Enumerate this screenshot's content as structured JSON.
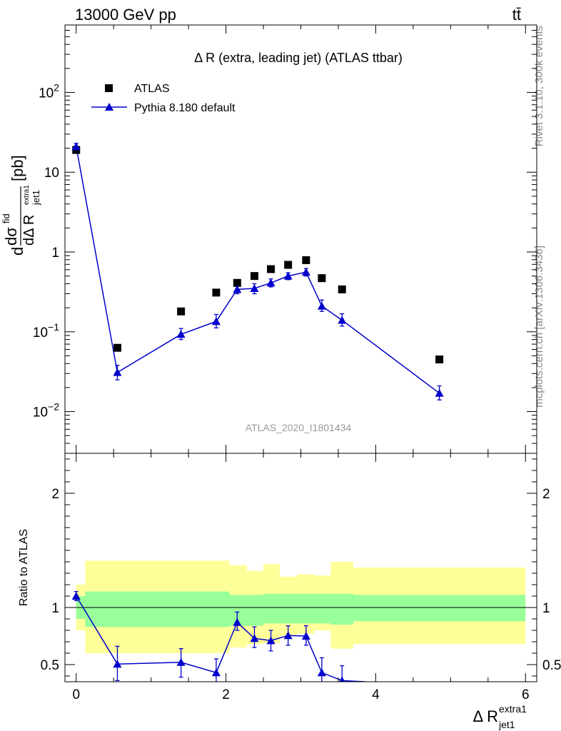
{
  "header": {
    "energy_label": "13000 GeV pp",
    "process_label": "tt̄"
  },
  "side_labels": {
    "rivet": "Rivet 3.1.10,  300k events",
    "mcplots": "mcplots.cern.ch [arXiv:1306.3436]"
  },
  "chart_data": [
    {
      "type": "scatter",
      "title": "Δ R (extra, leading jet) (ATLAS ttbar)",
      "watermark": "ATLAS_2020_I1801434",
      "ylabel_parts": {
        "d1": "d",
        "sig": "dσ",
        "fid": "fid",
        "den": "dΔ R",
        "sub": "jet1",
        "sup": "extra1",
        "unit": "[pb]"
      },
      "yscale": "log",
      "ylim": [
        0.003,
        700
      ],
      "xlim": [
        -0.15,
        6.15
      ],
      "y_ticks": [
        {
          "v": 0.01,
          "base": "10",
          "exp": "−2"
        },
        {
          "v": 0.1,
          "base": "10",
          "exp": "−1"
        },
        {
          "v": 1,
          "base": "1",
          "exp": ""
        },
        {
          "v": 10,
          "base": "10",
          "exp": ""
        },
        {
          "v": 100,
          "base": "10",
          "exp": "2"
        }
      ],
      "legend_position": "top-left",
      "series": [
        {
          "name": "ATLAS",
          "marker": "square",
          "color": "#000000",
          "x": [
            0.0,
            0.55,
            1.4,
            1.87,
            2.15,
            2.38,
            2.6,
            2.83,
            3.07,
            3.28,
            3.55,
            4.85
          ],
          "y": [
            19,
            0.063,
            0.18,
            0.31,
            0.41,
            0.5,
            0.61,
            0.69,
            0.79,
            0.47,
            0.34,
            0.045
          ]
        },
        {
          "name": "Pythia 8.180 default",
          "marker": "triangle",
          "color": "#0000cc",
          "x": [
            0.0,
            0.55,
            1.4,
            1.87,
            2.15,
            2.38,
            2.6,
            2.83,
            3.07,
            3.28,
            3.55,
            4.85
          ],
          "y": [
            21,
            0.031,
            0.093,
            0.135,
            0.34,
            0.35,
            0.41,
            0.5,
            0.56,
            0.21,
            0.14,
            0.017
          ],
          "err_lo": [
            19,
            0.025,
            0.08,
            0.112,
            0.3,
            0.3,
            0.365,
            0.45,
            0.5,
            0.18,
            0.118,
            0.014
          ],
          "err_hi": [
            23,
            0.038,
            0.11,
            0.165,
            0.39,
            0.4,
            0.46,
            0.55,
            0.62,
            0.25,
            0.168,
            0.021
          ]
        }
      ]
    },
    {
      "type": "line",
      "ylabel": "Ratio to ATLAS",
      "xlabel_parts": {
        "main": "Δ R",
        "sub": "jet1",
        "sup": "extra1"
      },
      "xlim": [
        -0.15,
        6.15
      ],
      "ylim": [
        0.35,
        2.35
      ],
      "x_ticks": [
        0,
        2,
        4,
        6
      ],
      "y_ticks": [
        0.5,
        1,
        2
      ],
      "y_tick_labels": [
        "0.5",
        "1",
        "2"
      ],
      "reference_line": 1,
      "uncertainty_bands": {
        "edges": [
          0.0,
          0.12,
          1.08,
          2.05,
          2.28,
          2.5,
          2.72,
          2.95,
          3.18,
          3.4,
          3.7,
          6.0
        ],
        "total_lo": [
          0.8,
          0.6,
          0.6,
          0.65,
          0.68,
          0.69,
          0.75,
          0.77,
          0.8,
          0.64,
          0.68,
          0.7
        ],
        "total_hi": [
          1.2,
          1.41,
          1.41,
          1.37,
          1.32,
          1.38,
          1.27,
          1.29,
          1.28,
          1.4,
          1.35,
          1.38
        ],
        "stat_lo": [
          0.9,
          0.83,
          0.83,
          0.84,
          0.84,
          0.86,
          0.86,
          0.86,
          0.86,
          0.85,
          0.88,
          0.86
        ],
        "stat_hi": [
          1.1,
          1.14,
          1.14,
          1.11,
          1.11,
          1.12,
          1.12,
          1.12,
          1.12,
          1.12,
          1.11,
          1.11
        ],
        "total_color": "#ffff99",
        "stat_color": "#99ff99"
      },
      "series": [
        {
          "name": "Pythia 8.180 default",
          "color": "#0000cc",
          "x": [
            0.0,
            0.55,
            1.4,
            1.87,
            2.15,
            2.38,
            2.6,
            2.83,
            3.07,
            3.28,
            3.55,
            4.0
          ],
          "y": [
            1.1,
            0.505,
            0.52,
            0.43,
            0.87,
            0.73,
            0.71,
            0.755,
            0.75,
            0.43,
            0.36,
            0.345
          ],
          "err_lo": [
            1.06,
            0.36,
            0.39,
            0.31,
            0.8,
            0.65,
            0.62,
            0.67,
            0.67,
            0.34,
            0.26,
            null
          ],
          "err_hi": [
            1.14,
            0.66,
            0.64,
            0.55,
            0.96,
            0.83,
            0.8,
            0.84,
            0.84,
            0.56,
            0.49,
            null
          ]
        }
      ]
    }
  ]
}
